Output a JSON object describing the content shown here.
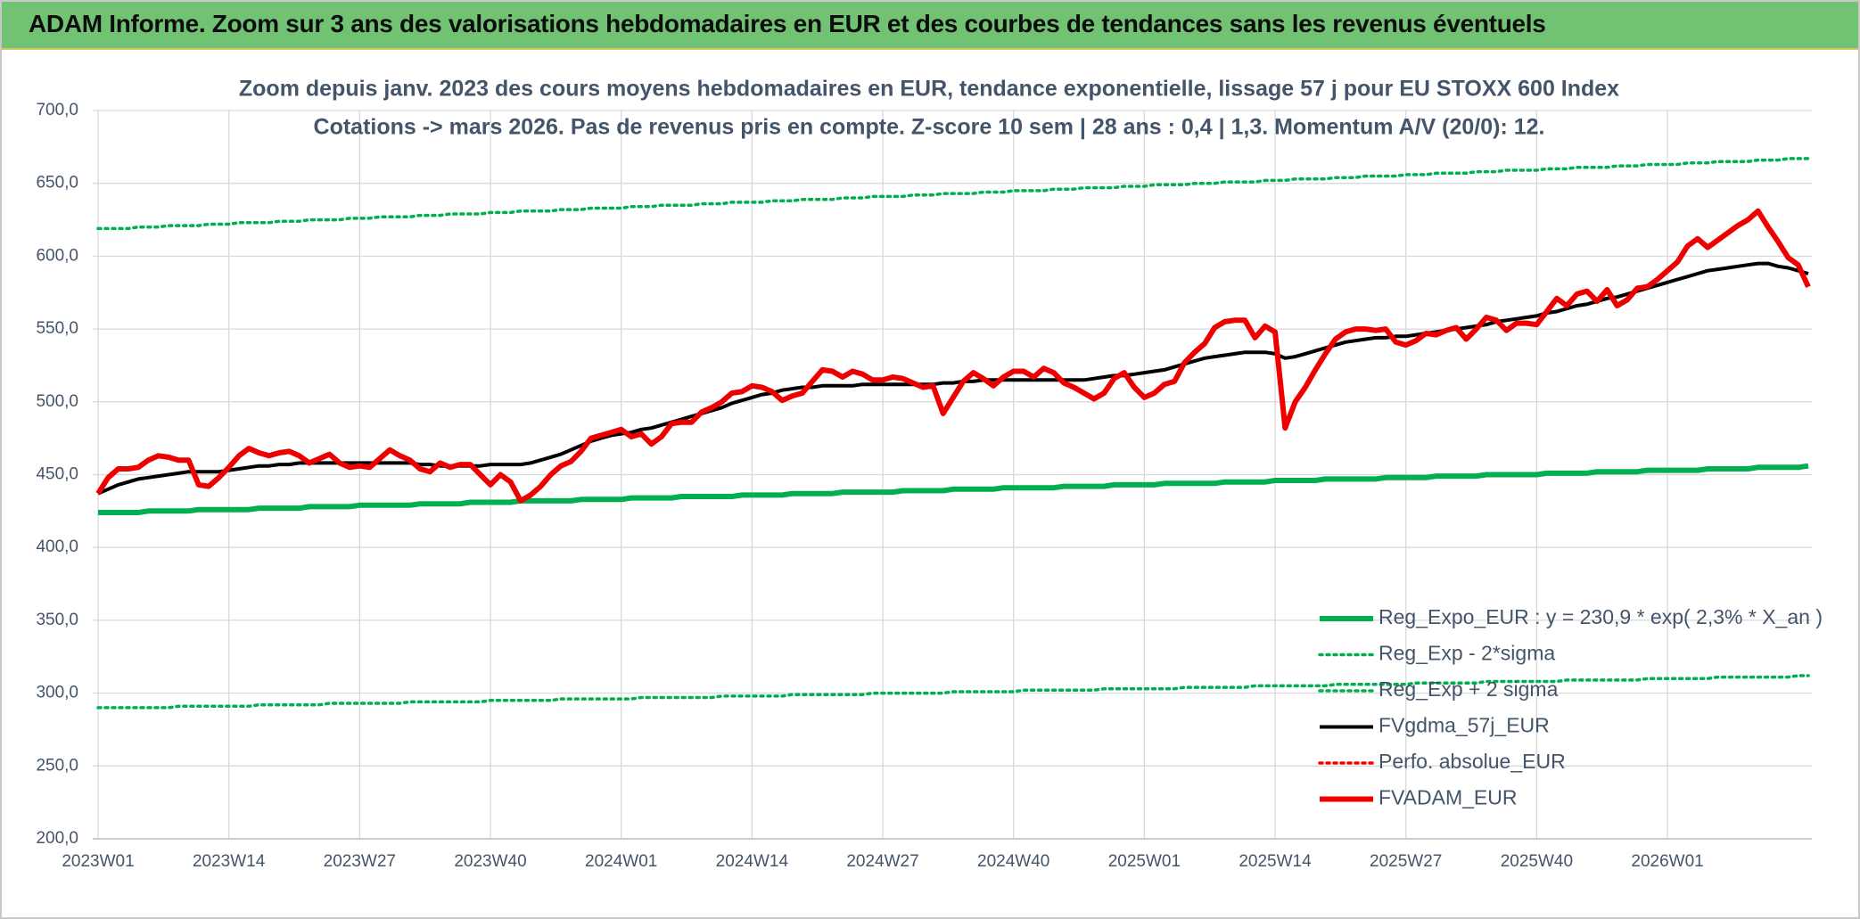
{
  "header": {
    "title": "ADAM Informe. Zoom sur 3 ans des valorisations hebdomadaires en EUR et des courbes de tendances sans les revenus éventuels"
  },
  "chart_data": {
    "type": "line",
    "title": "Zoom depuis janv. 2023 des cours moyens hebdomadaires en EUR, tendance exponentielle, lissage 57 j pour EU STOXX 600 Index",
    "subtitle": "Cotations -> mars 2026. Pas de revenus pris en compte. Z-score 10 sem | 28 ans : 0,4 | 1,3. Momentum A/V (20/0): 12.",
    "grid": true,
    "legend": "bottom-right",
    "ylim": [
      200,
      700
    ],
    "yticks": [
      {
        "value": 200,
        "label": "200,0"
      },
      {
        "value": 250,
        "label": "250,0"
      },
      {
        "value": 300,
        "label": "300,0"
      },
      {
        "value": 350,
        "label": "350,0"
      },
      {
        "value": 400,
        "label": "400,0"
      },
      {
        "value": 450,
        "label": "450,0"
      },
      {
        "value": 500,
        "label": "500,0"
      },
      {
        "value": 550,
        "label": "550,0"
      },
      {
        "value": 600,
        "label": "600,0"
      },
      {
        "value": 650,
        "label": "650,0"
      },
      {
        "value": 700,
        "label": "700,0"
      }
    ],
    "categories": [
      "2023W01",
      null,
      null,
      null,
      null,
      null,
      null,
      null,
      null,
      null,
      null,
      null,
      null,
      "2023W14",
      null,
      null,
      null,
      null,
      null,
      null,
      null,
      null,
      null,
      null,
      null,
      null,
      "2023W27",
      null,
      null,
      null,
      null,
      null,
      null,
      null,
      null,
      null,
      null,
      null,
      null,
      "2023W40",
      null,
      null,
      null,
      null,
      null,
      null,
      null,
      null,
      null,
      null,
      null,
      null,
      "2024W01",
      null,
      null,
      null,
      null,
      null,
      null,
      null,
      null,
      null,
      null,
      null,
      null,
      "2024W14",
      null,
      null,
      null,
      null,
      null,
      null,
      null,
      null,
      null,
      null,
      null,
      null,
      "2024W27",
      null,
      null,
      null,
      null,
      null,
      null,
      null,
      null,
      null,
      null,
      null,
      null,
      "2024W40",
      null,
      null,
      null,
      null,
      null,
      null,
      null,
      null,
      null,
      null,
      null,
      null,
      "2025W01",
      null,
      null,
      null,
      null,
      null,
      null,
      null,
      null,
      null,
      null,
      null,
      null,
      "2025W14",
      null,
      null,
      null,
      null,
      null,
      null,
      null,
      null,
      null,
      null,
      null,
      null,
      "2025W27",
      null,
      null,
      null,
      null,
      null,
      null,
      null,
      null,
      null,
      null,
      null,
      null,
      "2025W40",
      null,
      null,
      null,
      null,
      null,
      null,
      null,
      null,
      null,
      null,
      null,
      null,
      "2026W01",
      null,
      null,
      null,
      null,
      null,
      null,
      null,
      null,
      null,
      null,
      null,
      null,
      null,
      null
    ],
    "series": [
      {
        "name": "Reg_Expo_EUR : y = 230,9 * exp( 2,3% *  X_an )",
        "color": "#00b050",
        "line_style": "thick",
        "values": [
          424,
          424,
          424,
          424,
          424,
          425,
          425,
          425,
          425,
          425,
          426,
          426,
          426,
          426,
          426,
          426,
          427,
          427,
          427,
          427,
          427,
          428,
          428,
          428,
          428,
          428,
          429,
          429,
          429,
          429,
          429,
          429,
          430,
          430,
          430,
          430,
          430,
          431,
          431,
          431,
          431,
          431,
          432,
          432,
          432,
          432,
          432,
          432,
          433,
          433,
          433,
          433,
          433,
          434,
          434,
          434,
          434,
          434,
          435,
          435,
          435,
          435,
          435,
          435,
          436,
          436,
          436,
          436,
          436,
          437,
          437,
          437,
          437,
          437,
          438,
          438,
          438,
          438,
          438,
          438,
          439,
          439,
          439,
          439,
          439,
          440,
          440,
          440,
          440,
          440,
          441,
          441,
          441,
          441,
          441,
          441,
          442,
          442,
          442,
          442,
          442,
          443,
          443,
          443,
          443,
          443,
          444,
          444,
          444,
          444,
          444,
          444,
          445,
          445,
          445,
          445,
          445,
          446,
          446,
          446,
          446,
          446,
          447,
          447,
          447,
          447,
          447,
          447,
          448,
          448,
          448,
          448,
          448,
          449,
          449,
          449,
          449,
          449,
          450,
          450,
          450,
          450,
          450,
          450,
          451,
          451,
          451,
          451,
          451,
          452,
          452,
          452,
          452,
          452,
          453,
          453,
          453,
          453,
          453,
          453,
          454,
          454,
          454,
          454,
          454,
          455,
          455,
          455,
          455,
          455,
          456
        ]
      },
      {
        "name": "Reg_Exp - 2*sigma",
        "color": "#00b050",
        "line_style": "dotted",
        "values": [
          290,
          290,
          290,
          290,
          290,
          290,
          290,
          290,
          291,
          291,
          291,
          291,
          291,
          291,
          291,
          291,
          292,
          292,
          292,
          292,
          292,
          292,
          292,
          293,
          293,
          293,
          293,
          293,
          293,
          293,
          293,
          294,
          294,
          294,
          294,
          294,
          294,
          294,
          294,
          295,
          295,
          295,
          295,
          295,
          295,
          295,
          296,
          296,
          296,
          296,
          296,
          296,
          296,
          296,
          297,
          297,
          297,
          297,
          297,
          297,
          297,
          297,
          298,
          298,
          298,
          298,
          298,
          298,
          298,
          299,
          299,
          299,
          299,
          299,
          299,
          299,
          299,
          300,
          300,
          300,
          300,
          300,
          300,
          300,
          300,
          301,
          301,
          301,
          301,
          301,
          301,
          301,
          302,
          302,
          302,
          302,
          302,
          302,
          302,
          302,
          303,
          303,
          303,
          303,
          303,
          303,
          303,
          303,
          304,
          304,
          304,
          304,
          304,
          304,
          304,
          305,
          305,
          305,
          305,
          305,
          305,
          305,
          305,
          306,
          306,
          306,
          306,
          306,
          306,
          306,
          306,
          307,
          307,
          307,
          307,
          307,
          307,
          307,
          308,
          308,
          308,
          308,
          308,
          308,
          308,
          308,
          309,
          309,
          309,
          309,
          309,
          309,
          309,
          309,
          310,
          310,
          310,
          310,
          310,
          310,
          310,
          311,
          311,
          311,
          311,
          311,
          311,
          311,
          311,
          312,
          312
        ]
      },
      {
        "name": "Reg_Exp + 2 sigma",
        "color": "#00b050",
        "line_style": "dotted",
        "values": [
          619,
          619,
          619,
          619,
          620,
          620,
          620,
          621,
          621,
          621,
          621,
          622,
          622,
          622,
          623,
          623,
          623,
          623,
          624,
          624,
          624,
          625,
          625,
          625,
          625,
          626,
          626,
          626,
          627,
          627,
          627,
          627,
          628,
          628,
          628,
          629,
          629,
          629,
          629,
          630,
          630,
          630,
          631,
          631,
          631,
          631,
          632,
          632,
          632,
          633,
          633,
          633,
          633,
          634,
          634,
          634,
          635,
          635,
          635,
          635,
          636,
          636,
          636,
          637,
          637,
          637,
          637,
          638,
          638,
          638,
          639,
          639,
          639,
          639,
          640,
          640,
          640,
          641,
          641,
          641,
          641,
          642,
          642,
          642,
          643,
          643,
          643,
          643,
          644,
          644,
          644,
          645,
          645,
          645,
          645,
          646,
          646,
          646,
          647,
          647,
          647,
          647,
          648,
          648,
          648,
          649,
          649,
          649,
          649,
          650,
          650,
          650,
          651,
          651,
          651,
          651,
          652,
          652,
          652,
          653,
          653,
          653,
          653,
          654,
          654,
          654,
          655,
          655,
          655,
          655,
          656,
          656,
          656,
          657,
          657,
          657,
          657,
          658,
          658,
          658,
          659,
          659,
          659,
          659,
          660,
          660,
          660,
          661,
          661,
          661,
          661,
          662,
          662,
          662,
          663,
          663,
          663,
          663,
          664,
          664,
          664,
          665,
          665,
          665,
          665,
          666,
          666,
          666,
          667,
          667,
          667
        ]
      },
      {
        "name": "FVgdma_57j_EUR",
        "color": "#000000",
        "line_style": "solid",
        "values": [
          437,
          440,
          443,
          445,
          447,
          448,
          449,
          450,
          451,
          452,
          452,
          452,
          452,
          453,
          454,
          455,
          456,
          456,
          457,
          457,
          458,
          458,
          458,
          458,
          458,
          458,
          458,
          458,
          458,
          458,
          458,
          458,
          457,
          457,
          456,
          456,
          456,
          456,
          456,
          457,
          457,
          457,
          457,
          458,
          460,
          462,
          464,
          467,
          470,
          473,
          475,
          477,
          478,
          479,
          481,
          482,
          484,
          486,
          488,
          490,
          492,
          494,
          496,
          499,
          501,
          503,
          505,
          506,
          508,
          509,
          510,
          510,
          511,
          511,
          511,
          511,
          512,
          512,
          512,
          512,
          512,
          512,
          512,
          512,
          513,
          513,
          514,
          514,
          515,
          515,
          515,
          515,
          515,
          515,
          515,
          515,
          515,
          515,
          515,
          516,
          517,
          518,
          518,
          519,
          520,
          521,
          522,
          524,
          526,
          528,
          530,
          531,
          532,
          533,
          534,
          534,
          534,
          533,
          530,
          531,
          533,
          535,
          537,
          539,
          541,
          542,
          543,
          544,
          544,
          545,
          545,
          546,
          547,
          548,
          549,
          550,
          551,
          552,
          553,
          555,
          556,
          557,
          558,
          559,
          561,
          562,
          564,
          566,
          567,
          569,
          571,
          572,
          574,
          576,
          578,
          580,
          582,
          584,
          586,
          588,
          590,
          591,
          592,
          593,
          594,
          595,
          595,
          593,
          592,
          590,
          588
        ]
      },
      {
        "name": "Perfo. absolue_EUR",
        "color": "#ff0000",
        "line_style": "dotted",
        "values": [
          null,
          null,
          null,
          null,
          null,
          null,
          null,
          null,
          null,
          null,
          null,
          null,
          null,
          null,
          null,
          null,
          null,
          null,
          null,
          null,
          null,
          null,
          null,
          null,
          null,
          null,
          null,
          null,
          null,
          null,
          null,
          null,
          null,
          null,
          null,
          null,
          null,
          null,
          null,
          null,
          null,
          null,
          null,
          null,
          null,
          null,
          null,
          null,
          null,
          null,
          null,
          null,
          null,
          null,
          null,
          null,
          null,
          null,
          null,
          null,
          null,
          null,
          null,
          null,
          null,
          null,
          null,
          null,
          null,
          null,
          null,
          null,
          null,
          null,
          null,
          null,
          null,
          null,
          null,
          null,
          null,
          null,
          null,
          null,
          null,
          null,
          null,
          null,
          null,
          null,
          null,
          null,
          null,
          null,
          null,
          null,
          null,
          null,
          null,
          null,
          null,
          null,
          null,
          null,
          null,
          null,
          null,
          null,
          null,
          null,
          null,
          null,
          null,
          null,
          null,
          null,
          null,
          null,
          null,
          null,
          null,
          null,
          null,
          null,
          null,
          null,
          null,
          null,
          null,
          null,
          null,
          null,
          null,
          null,
          null,
          null,
          null,
          null,
          null,
          null,
          null,
          null,
          null,
          null,
          null,
          null,
          null,
          null,
          null,
          null,
          null,
          null,
          null,
          null,
          null,
          null,
          null,
          null,
          null,
          null,
          null,
          null,
          null,
          null,
          null,
          null,
          null,
          null,
          null,
          null,
          null
        ]
      },
      {
        "name": "FVADAM_EUR",
        "color": "#ee0000",
        "line_style": "thick",
        "values": [
          437,
          448,
          454,
          454,
          455,
          460,
          463,
          462,
          460,
          460,
          443,
          442,
          448,
          455,
          463,
          468,
          465,
          463,
          465,
          466,
          463,
          458,
          461,
          464,
          458,
          455,
          456,
          455,
          461,
          467,
          463,
          460,
          454,
          452,
          458,
          455,
          457,
          457,
          450,
          443,
          450,
          445,
          432,
          436,
          442,
          450,
          456,
          459,
          466,
          475,
          477,
          479,
          481,
          476,
          478,
          471,
          476,
          485,
          486,
          486,
          493,
          496,
          500,
          506,
          507,
          511,
          510,
          507,
          501,
          504,
          506,
          514,
          522,
          521,
          517,
          521,
          519,
          515,
          515,
          517,
          516,
          513,
          510,
          511,
          492,
          503,
          514,
          520,
          516,
          511,
          517,
          521,
          521,
          517,
          523,
          520,
          513,
          510,
          506,
          502,
          506,
          516,
          520,
          510,
          503,
          506,
          512,
          514,
          527,
          534,
          540,
          551,
          555,
          556,
          556,
          544,
          552,
          548,
          482,
          500,
          510,
          522,
          533,
          543,
          548,
          550,
          550,
          549,
          550,
          541,
          539,
          542,
          547,
          546,
          549,
          551,
          543,
          550,
          558,
          556,
          549,
          554,
          554,
          553,
          562,
          571,
          566,
          574,
          576,
          569,
          577,
          566,
          570,
          578,
          579,
          584,
          590,
          596,
          607,
          612,
          606,
          611,
          616,
          621,
          625,
          631,
          620,
          610,
          599,
          594,
          579
        ]
      }
    ]
  }
}
